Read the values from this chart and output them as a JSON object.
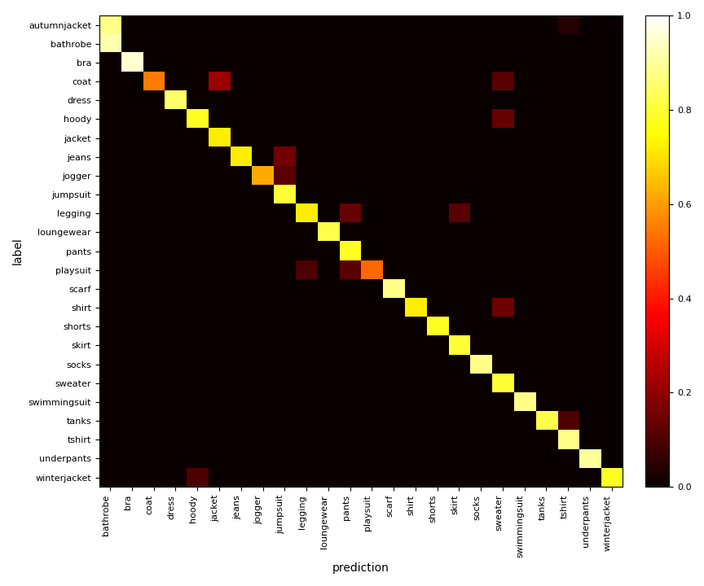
{
  "y_labels": [
    "autumnjacket",
    "bathrobe",
    "bra",
    "coat",
    "dress",
    "hoody",
    "jacket",
    "jeans",
    "jogger",
    "jumpsuit",
    "legging",
    "loungewear",
    "pants",
    "playsuit",
    "scarf",
    "shirt",
    "shorts",
    "skirt",
    "socks",
    "sweater",
    "swimmingsuit",
    "tanks",
    "tshirt",
    "underpants",
    "winterjacket"
  ],
  "x_labels": [
    "bathrobe",
    "bra",
    "coat",
    "dress",
    "hoody",
    "jacket",
    "jeans",
    "jogger",
    "jumpsuit",
    "legging",
    "loungewear",
    "pants",
    "playsuit",
    "scarf",
    "shirt",
    "shorts",
    "skirt",
    "socks",
    "sweater",
    "swimmingsuit",
    "tanks",
    "tshirt",
    "underpants",
    "winterjacket"
  ],
  "xlabel": "prediction",
  "ylabel": "label",
  "figsize": [
    8.64,
    7.2
  ],
  "cmap": "hot",
  "vmin": 0.0,
  "vmax": 1.0,
  "cbar_ticks": [
    0.0,
    0.2,
    0.4,
    0.6,
    0.8,
    1.0
  ],
  "tick_fontsize": 8,
  "label_fontsize": 10,
  "matrix": [
    [
      0.88,
      0.0,
      0.0,
      0.0,
      0.0,
      0.0,
      0.0,
      0.0,
      0.0,
      0.0,
      0.0,
      0.0,
      0.0,
      0.0,
      0.0,
      0.0,
      0.0,
      0.0,
      0.0,
      0.0,
      0.0,
      0.04,
      0.0,
      0.0
    ],
    [
      0.92,
      0.0,
      0.0,
      0.0,
      0.0,
      0.0,
      0.0,
      0.0,
      0.0,
      0.0,
      0.0,
      0.0,
      0.0,
      0.0,
      0.0,
      0.0,
      0.0,
      0.0,
      0.0,
      0.0,
      0.0,
      0.0,
      0.0,
      0.0
    ],
    [
      0.0,
      0.95,
      0.0,
      0.0,
      0.0,
      0.0,
      0.0,
      0.0,
      0.0,
      0.0,
      0.0,
      0.0,
      0.0,
      0.0,
      0.0,
      0.0,
      0.0,
      0.0,
      0.0,
      0.0,
      0.0,
      0.0,
      0.0,
      0.0
    ],
    [
      0.0,
      0.0,
      0.55,
      0.0,
      0.0,
      0.22,
      0.0,
      0.0,
      0.0,
      0.0,
      0.0,
      0.0,
      0.0,
      0.0,
      0.0,
      0.0,
      0.0,
      0.0,
      0.12,
      0.0,
      0.0,
      0.0,
      0.0,
      0.0
    ],
    [
      0.0,
      0.0,
      0.0,
      0.85,
      0.0,
      0.0,
      0.0,
      0.0,
      0.0,
      0.0,
      0.0,
      0.0,
      0.0,
      0.0,
      0.0,
      0.0,
      0.0,
      0.0,
      0.0,
      0.0,
      0.0,
      0.0,
      0.0,
      0.0
    ],
    [
      0.0,
      0.0,
      0.0,
      0.0,
      0.78,
      0.0,
      0.0,
      0.0,
      0.0,
      0.0,
      0.0,
      0.0,
      0.0,
      0.0,
      0.0,
      0.0,
      0.0,
      0.0,
      0.14,
      0.0,
      0.0,
      0.0,
      0.0,
      0.0
    ],
    [
      0.0,
      0.0,
      0.0,
      0.0,
      0.0,
      0.72,
      0.0,
      0.0,
      0.0,
      0.0,
      0.0,
      0.0,
      0.0,
      0.0,
      0.0,
      0.0,
      0.0,
      0.0,
      0.0,
      0.0,
      0.0,
      0.0,
      0.0,
      0.0
    ],
    [
      0.0,
      0.0,
      0.0,
      0.0,
      0.0,
      0.0,
      0.72,
      0.0,
      0.16,
      0.0,
      0.0,
      0.0,
      0.0,
      0.0,
      0.0,
      0.0,
      0.0,
      0.0,
      0.0,
      0.0,
      0.0,
      0.0,
      0.0,
      0.0
    ],
    [
      0.0,
      0.0,
      0.0,
      0.0,
      0.0,
      0.0,
      0.0,
      0.62,
      0.12,
      0.0,
      0.0,
      0.0,
      0.0,
      0.0,
      0.0,
      0.0,
      0.0,
      0.0,
      0.0,
      0.0,
      0.0,
      0.0,
      0.0,
      0.0
    ],
    [
      0.0,
      0.0,
      0.0,
      0.0,
      0.0,
      0.0,
      0.0,
      0.0,
      0.8,
      0.0,
      0.0,
      0.0,
      0.0,
      0.0,
      0.0,
      0.0,
      0.0,
      0.0,
      0.0,
      0.0,
      0.0,
      0.0,
      0.0,
      0.0
    ],
    [
      0.0,
      0.0,
      0.0,
      0.0,
      0.0,
      0.0,
      0.0,
      0.0,
      0.0,
      0.72,
      0.0,
      0.14,
      0.0,
      0.0,
      0.0,
      0.0,
      0.12,
      0.0,
      0.0,
      0.0,
      0.0,
      0.0,
      0.0,
      0.0
    ],
    [
      0.0,
      0.0,
      0.0,
      0.0,
      0.0,
      0.0,
      0.0,
      0.0,
      0.0,
      0.0,
      0.82,
      0.0,
      0.0,
      0.0,
      0.0,
      0.0,
      0.0,
      0.0,
      0.0,
      0.0,
      0.0,
      0.0,
      0.0,
      0.0
    ],
    [
      0.0,
      0.0,
      0.0,
      0.0,
      0.0,
      0.0,
      0.0,
      0.0,
      0.0,
      0.0,
      0.0,
      0.78,
      0.0,
      0.0,
      0.0,
      0.0,
      0.0,
      0.0,
      0.0,
      0.0,
      0.0,
      0.0,
      0.0,
      0.0
    ],
    [
      0.0,
      0.0,
      0.0,
      0.0,
      0.0,
      0.0,
      0.0,
      0.0,
      0.0,
      0.1,
      0.0,
      0.12,
      0.52,
      0.0,
      0.0,
      0.0,
      0.0,
      0.0,
      0.0,
      0.0,
      0.0,
      0.0,
      0.0,
      0.0
    ],
    [
      0.0,
      0.0,
      0.0,
      0.0,
      0.0,
      0.0,
      0.0,
      0.0,
      0.0,
      0.0,
      0.0,
      0.0,
      0.0,
      0.88,
      0.0,
      0.0,
      0.0,
      0.0,
      0.0,
      0.0,
      0.0,
      0.0,
      0.0,
      0.0
    ],
    [
      0.0,
      0.0,
      0.0,
      0.0,
      0.0,
      0.0,
      0.0,
      0.0,
      0.0,
      0.0,
      0.0,
      0.0,
      0.0,
      0.0,
      0.72,
      0.0,
      0.0,
      0.0,
      0.15,
      0.0,
      0.0,
      0.0,
      0.0,
      0.0
    ],
    [
      0.0,
      0.0,
      0.0,
      0.0,
      0.0,
      0.0,
      0.0,
      0.0,
      0.0,
      0.0,
      0.0,
      0.0,
      0.0,
      0.0,
      0.0,
      0.78,
      0.0,
      0.0,
      0.0,
      0.0,
      0.0,
      0.0,
      0.0,
      0.0
    ],
    [
      0.0,
      0.0,
      0.0,
      0.0,
      0.0,
      0.0,
      0.0,
      0.0,
      0.0,
      0.0,
      0.0,
      0.0,
      0.0,
      0.0,
      0.0,
      0.0,
      0.8,
      0.0,
      0.0,
      0.0,
      0.0,
      0.0,
      0.0,
      0.0
    ],
    [
      0.0,
      0.0,
      0.0,
      0.0,
      0.0,
      0.0,
      0.0,
      0.0,
      0.0,
      0.0,
      0.0,
      0.0,
      0.0,
      0.0,
      0.0,
      0.0,
      0.0,
      0.88,
      0.0,
      0.0,
      0.0,
      0.0,
      0.0,
      0.0
    ],
    [
      0.0,
      0.0,
      0.0,
      0.0,
      0.0,
      0.0,
      0.0,
      0.0,
      0.0,
      0.0,
      0.0,
      0.0,
      0.0,
      0.0,
      0.0,
      0.0,
      0.0,
      0.0,
      0.8,
      0.0,
      0.0,
      0.0,
      0.0,
      0.0
    ],
    [
      0.0,
      0.0,
      0.0,
      0.0,
      0.0,
      0.0,
      0.0,
      0.0,
      0.0,
      0.0,
      0.0,
      0.0,
      0.0,
      0.0,
      0.0,
      0.0,
      0.0,
      0.0,
      0.0,
      0.88,
      0.0,
      0.0,
      0.0,
      0.0
    ],
    [
      0.0,
      0.0,
      0.0,
      0.0,
      0.0,
      0.0,
      0.0,
      0.0,
      0.0,
      0.0,
      0.0,
      0.0,
      0.0,
      0.0,
      0.0,
      0.0,
      0.0,
      0.0,
      0.0,
      0.0,
      0.82,
      0.1,
      0.0,
      0.0
    ],
    [
      0.0,
      0.0,
      0.0,
      0.0,
      0.0,
      0.0,
      0.0,
      0.0,
      0.0,
      0.0,
      0.0,
      0.0,
      0.0,
      0.0,
      0.0,
      0.0,
      0.0,
      0.0,
      0.0,
      0.0,
      0.0,
      0.88,
      0.0,
      0.0
    ],
    [
      0.0,
      0.0,
      0.0,
      0.0,
      0.0,
      0.0,
      0.0,
      0.0,
      0.0,
      0.0,
      0.0,
      0.0,
      0.0,
      0.0,
      0.0,
      0.0,
      0.0,
      0.0,
      0.0,
      0.0,
      0.0,
      0.0,
      0.9,
      0.0
    ],
    [
      0.0,
      0.0,
      0.0,
      0.0,
      0.1,
      0.0,
      0.0,
      0.0,
      0.0,
      0.0,
      0.0,
      0.0,
      0.0,
      0.0,
      0.0,
      0.0,
      0.0,
      0.0,
      0.0,
      0.0,
      0.0,
      0.0,
      0.0,
      0.78
    ]
  ]
}
